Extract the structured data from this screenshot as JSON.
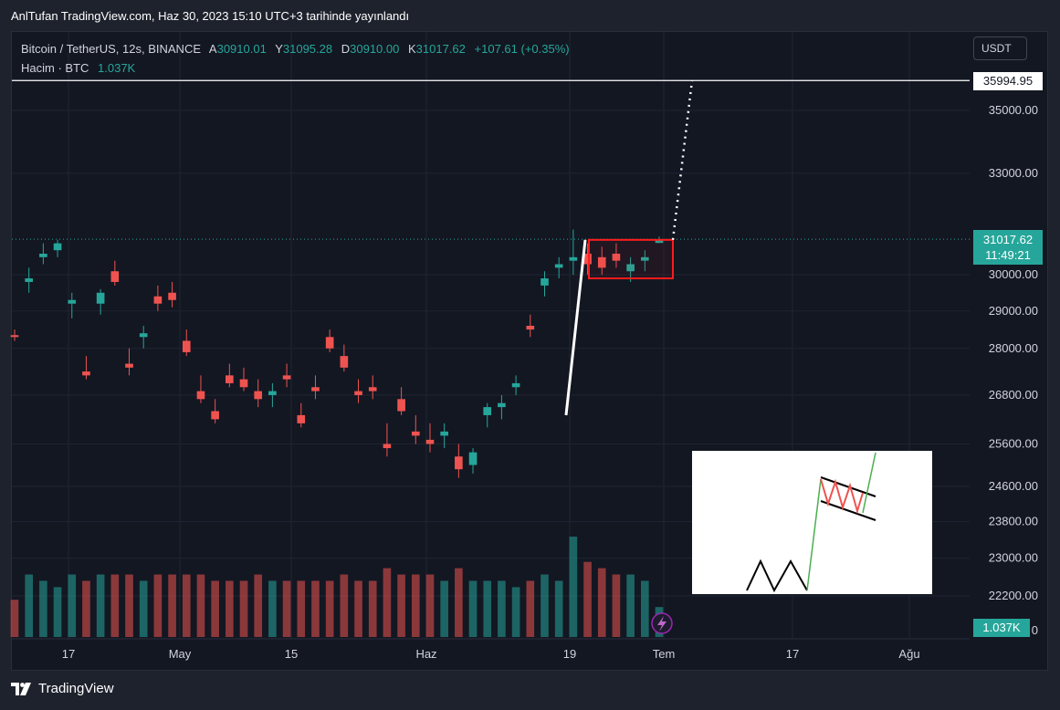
{
  "caption": "AnlTufan TradingView.com, Haz 30, 2023 15:10 UTC+3 tarihinde yayınlandı",
  "legend": {
    "symbol": "Bitcoin / TetherUS, 12s, BINANCE",
    "o_label": "A",
    "o_value": "30910.01",
    "h_label": "Y",
    "h_value": "31095.28",
    "l_label": "D",
    "l_value": "30910.00",
    "c_label": "K",
    "c_value": "31017.62",
    "change": "+107.61 (+0.35%)",
    "volume_label": "Hacim · BTC",
    "volume_value": "1.037K"
  },
  "currency": "USDT",
  "horizontal_line_label": "35994.95",
  "last_price_label": "31017.62",
  "countdown_label": "11:49:21",
  "volume_badge": "1.037K",
  "y_ticks": [
    "35000.00",
    "33000.00",
    "30000.00",
    "29000.00",
    "28000.00",
    "26800.00",
    "25600.00",
    "24600.00",
    "23800.00",
    "23000.00",
    "22200.00"
  ],
  "y_bottom_tick": "0",
  "x_ticks": [
    "17",
    "May",
    "15",
    "Haz",
    "19",
    "Tem",
    "17",
    "Ağu"
  ],
  "footer_brand": "TradingView",
  "colors": {
    "up": "#26a69a",
    "down": "#ef5350",
    "box": "#ff1c1c",
    "flag_green": "#4caf50"
  },
  "chart_data": {
    "type": "candlestick",
    "timeframe": "12h",
    "y_scale": "log",
    "last_price": 31017.62,
    "horizontal_line": 35994.95,
    "annotation_box": {
      "y_range": [
        29900,
        31000
      ]
    },
    "target_dotted_line": {
      "from": 31000,
      "to": 35994.95
    },
    "ohlc_points": [
      [
        28350,
        28500,
        28200,
        28300
      ],
      [
        29800,
        30200,
        29500,
        29900
      ],
      [
        30500,
        30900,
        30300,
        30600
      ],
      [
        30700,
        31000,
        30500,
        30900
      ],
      [
        29200,
        29500,
        28800,
        29300
      ],
      [
        27400,
        27800,
        27200,
        27300
      ],
      [
        29200,
        29600,
        28900,
        29500
      ],
      [
        30100,
        30400,
        29700,
        29800
      ],
      [
        27600,
        28000,
        27300,
        27500
      ],
      [
        28300,
        28600,
        28000,
        28400
      ],
      [
        29400,
        29700,
        29000,
        29200
      ],
      [
        29500,
        29800,
        29100,
        29300
      ],
      [
        28200,
        28500,
        27800,
        27900
      ],
      [
        26900,
        27300,
        26600,
        26700
      ],
      [
        26400,
        26700,
        26100,
        26200
      ],
      [
        27300,
        27600,
        27000,
        27100
      ],
      [
        27200,
        27500,
        26900,
        27000
      ],
      [
        26900,
        27200,
        26500,
        26700
      ],
      [
        26800,
        27100,
        26500,
        26900
      ],
      [
        27300,
        27600,
        27000,
        27200
      ],
      [
        26300,
        26600,
        26000,
        26100
      ],
      [
        27000,
        27300,
        26700,
        26900
      ],
      [
        28300,
        28500,
        27900,
        28000
      ],
      [
        27800,
        28100,
        27400,
        27500
      ],
      [
        26900,
        27200,
        26600,
        26800
      ],
      [
        27000,
        27300,
        26700,
        26900
      ],
      [
        25600,
        26100,
        25300,
        25500
      ],
      [
        26700,
        27000,
        26300,
        26400
      ],
      [
        25900,
        26300,
        25600,
        25800
      ],
      [
        25700,
        26100,
        25400,
        25600
      ],
      [
        25800,
        26100,
        25500,
        25900
      ],
      [
        25300,
        25600,
        24800,
        25000
      ],
      [
        25100,
        25500,
        24900,
        25400
      ],
      [
        26300,
        26600,
        26000,
        26500
      ],
      [
        26500,
        26800,
        26200,
        26600
      ],
      [
        27000,
        27300,
        26800,
        27100
      ],
      [
        28600,
        28900,
        28300,
        28500
      ],
      [
        29700,
        30100,
        29400,
        29900
      ],
      [
        30200,
        30500,
        29900,
        30300
      ],
      [
        30400,
        31300,
        30000,
        30500
      ],
      [
        30600,
        30900,
        30000,
        30300
      ],
      [
        30500,
        30800,
        30000,
        30200
      ],
      [
        30600,
        30900,
        30200,
        30400
      ],
      [
        30100,
        30500,
        29800,
        30300
      ],
      [
        30400,
        30700,
        30100,
        30500
      ],
      [
        30910.01,
        31095.28,
        30910,
        31017.62
      ]
    ],
    "volume_max_value": 1.037
  }
}
